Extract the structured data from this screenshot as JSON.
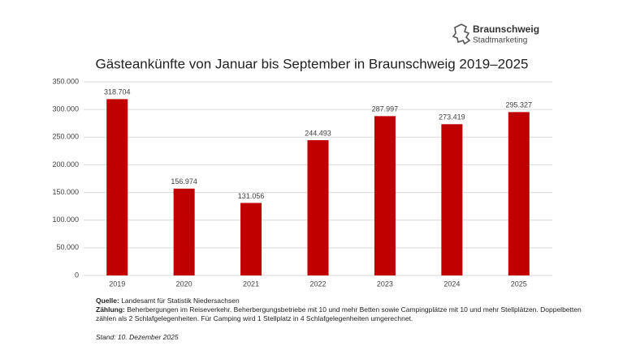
{
  "chart_data": {
    "type": "bar",
    "title": "Gästeankünfte von Januar bis September in Braunschweig 2019–2025",
    "categories": [
      "2019",
      "2020",
      "2021",
      "2022",
      "2023",
      "2024",
      "2025"
    ],
    "values": [
      318704,
      156974,
      131056,
      244493,
      287997,
      273419,
      295327
    ],
    "value_labels": [
      "318.704",
      "156.974",
      "131.056",
      "244.493",
      "287.997",
      "273.419",
      "295.327"
    ],
    "color": "#c00000",
    "ylim": [
      0,
      350000
    ],
    "yticks": [
      0,
      {
        "value": 50000,
        "label": "50.000"
      },
      {
        "value": 100000,
        "label": "100.000"
      },
      {
        "value": 150000,
        "label": "150.000"
      },
      {
        "value": 200000,
        "label": "200.000"
      },
      {
        "value": 250000,
        "label": "250.000"
      },
      {
        "value": 300000,
        "label": "300.000"
      },
      {
        "value": 350000,
        "label": "350.000"
      }
    ],
    "grid": true,
    "logo": {
      "name": "Braunschweig",
      "tagline": "Stadtmarketing"
    },
    "source": {
      "label": "Quelle:",
      "text": "Landesamt für Statistik Niedersachsen"
    },
    "counting": {
      "label": "Zählung:",
      "text": "Beherbergungen im Reiseverkehr. Beherbergungsbetriebe mit 10 und mehr Betten sowie Campingplätze mit 10 und mehr Stellplätzen. Doppelbetten zählen als 2 Schlafgelegenheiten. Für Camping wird 1 Stellplatz in 4 Schlafgelegenheiten umgerechnet."
    },
    "date": "Stand: 10. Dezember 2025"
  }
}
